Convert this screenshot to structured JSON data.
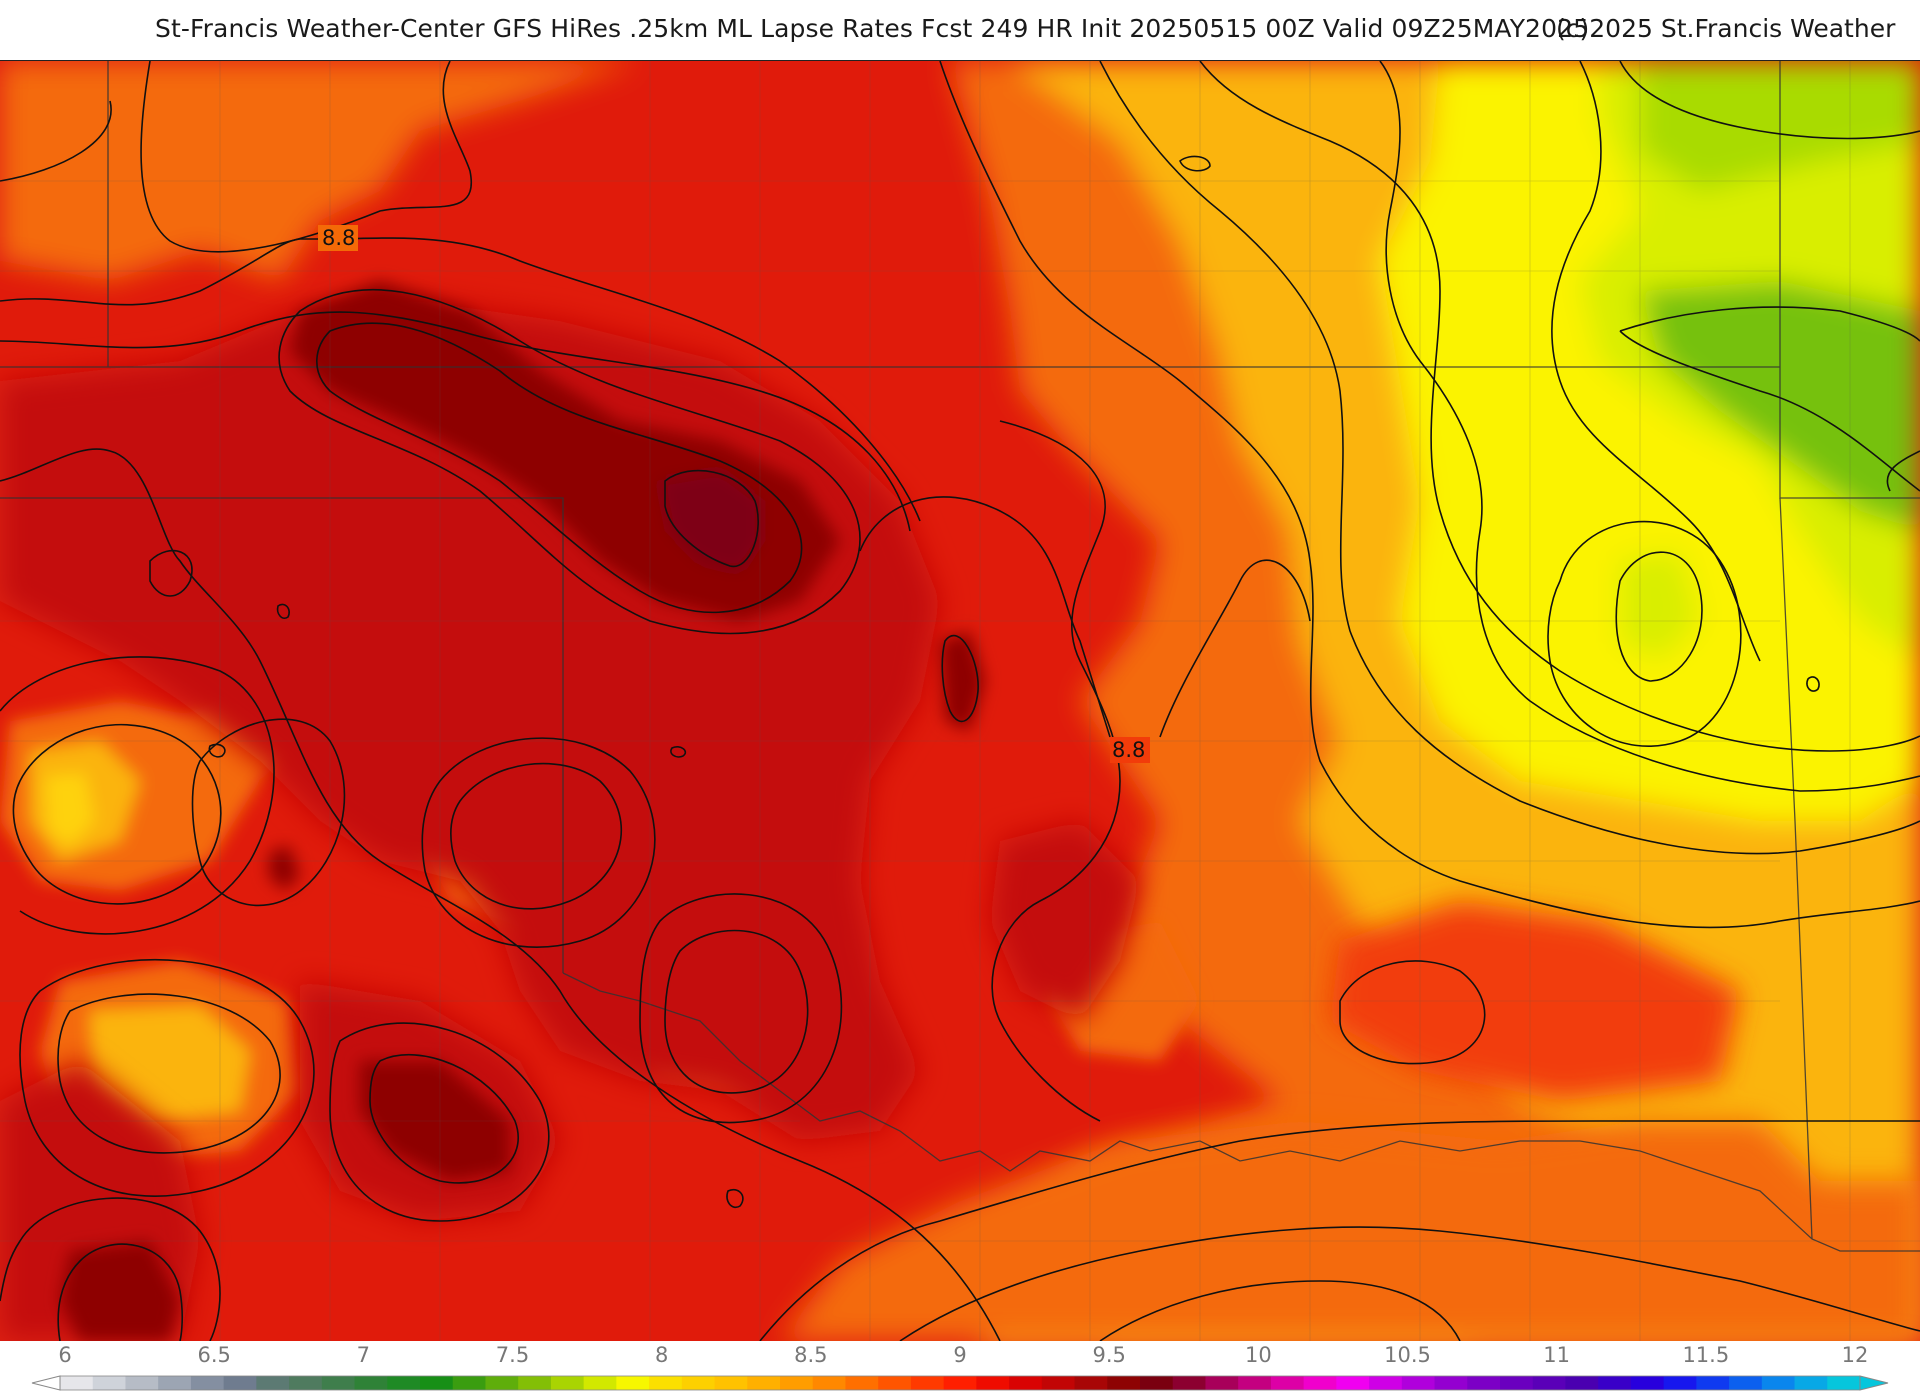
{
  "header": {
    "title": "St-Francis Weather-Center GFS HiRes .25km ML Lapse Rates  Fcst 249 HR Init 20250515 00Z  Valid 09Z25MAY2025",
    "copyright": "(c)2025 St.Francis Weather"
  },
  "map": {
    "contour_labels": [
      "8.8",
      "8.8"
    ],
    "fill_colors": {
      "deep_red": "#7e0017",
      "dark_red": "#8e0303",
      "crimson": "#c40a0a",
      "red": "#e01b0b",
      "orange_red": "#f23c0a",
      "dark_orange": "#f46a07",
      "orange": "#f9950c",
      "amber": "#fbb40e",
      "gold": "#fed20a",
      "yellow": "#fbf300",
      "yellow_green": "#d9ee00",
      "lime": "#a9db04",
      "green": "#76c10a"
    }
  },
  "colorbar": {
    "tick_labels": [
      "6",
      "6.5",
      "7",
      "7.5",
      "8",
      "8.5",
      "9",
      "9.5",
      "10",
      "10.5",
      "11",
      "11.5",
      "12"
    ],
    "colors": [
      "#e6e6ea",
      "#cfd3da",
      "#b6bcc6",
      "#9ca5b3",
      "#848fa1",
      "#6f7c8f",
      "#5c7a73",
      "#4f7b5f",
      "#3f7e4c",
      "#2f8237",
      "#1f8a25",
      "#178f16",
      "#3a9d10",
      "#5fae0b",
      "#83bf06",
      "#a9d402",
      "#d2e800",
      "#f7f700",
      "#fbe000",
      "#fdd000",
      "#ffc200",
      "#ffb000",
      "#ff9d00",
      "#ff8800",
      "#ff6f00",
      "#ff5500",
      "#ff3a00",
      "#ff1f00",
      "#ef0c00",
      "#d90303",
      "#c20505",
      "#a80606",
      "#8e0303",
      "#7a0010",
      "#8c0030",
      "#a8005a",
      "#c40080",
      "#dd00a6",
      "#f000cc",
      "#f000f0",
      "#cf00e6",
      "#b000dc",
      "#9400d0",
      "#7c00c6",
      "#6a00bf",
      "#5a00b8",
      "#4a00b0",
      "#3900c8",
      "#2800dd",
      "#1717ee",
      "#0f3af0",
      "#0c60ef",
      "#0a86ed",
      "#08a8e6",
      "#06c6dc"
    ]
  }
}
